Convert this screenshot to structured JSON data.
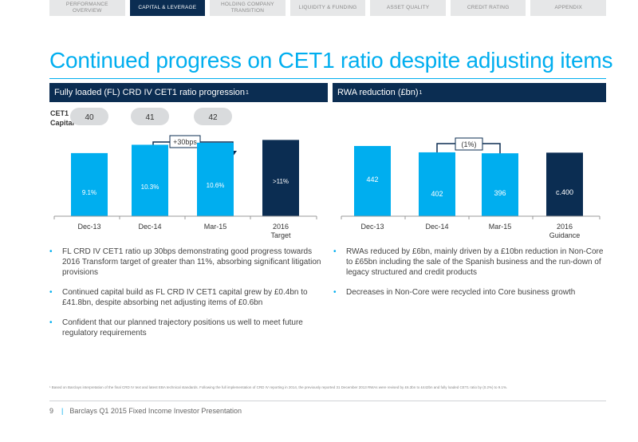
{
  "tabs": [
    {
      "label": "PERFORMANCE OVERVIEW"
    },
    {
      "label": "CAPITAL & LEVERAGE"
    },
    {
      "label": "HOLDING COMPANY TRANSITION"
    },
    {
      "label": "LIQUIDITY & FUNDING"
    },
    {
      "label": "ASSET QUALITY"
    },
    {
      "label": "CREDIT RATING"
    },
    {
      "label": "APPENDIX"
    }
  ],
  "title": "Continued progress on CET1 ratio despite adjusting items",
  "left_panel": {
    "heading": "Fully loaded (FL) CRD IV CET1 ratio progression",
    "heading_sup": "1",
    "capital_label_1": "CET1",
    "capital_label_2": "Capital",
    "capital_values": [
      "40",
      "41",
      "42"
    ],
    "callout": "+30bps",
    "bullets": [
      "FL CRD IV CET1 ratio up 30bps demonstrating good progress towards 2016 Transform target of greater than 11%, absorbing significant litigation provisions",
      "Continued capital build as FL CRD IV CET1 capital grew by £0.4bn to £41.8bn, despite absorbing net adjusting items of £0.6bn",
      "Confident that our planned trajectory positions us well to meet future regulatory requirements"
    ]
  },
  "right_panel": {
    "heading": "RWA reduction (£bn)",
    "heading_sup": "1",
    "callout": "(1%)",
    "bullets": [
      "RWAs reduced by £6bn, mainly driven by a £10bn reduction in Non-Core to £65bn including the sale of the Spanish business and the run-down of legacy structured and credit products",
      "Decreases in Non-Core were recycled into Core business growth"
    ]
  },
  "colors": {
    "navy": "#0b2d52",
    "cyan": "#00aeef"
  },
  "chart_data": [
    {
      "type": "bar",
      "categories": [
        "Dec-13",
        "Dec-14",
        "Mar-15",
        "2016 Target"
      ],
      "values": [
        9.1,
        10.3,
        10.6,
        11.0
      ],
      "labels": [
        "9.1%",
        "10.3%",
        "10.6%",
        ">11%"
      ],
      "ylim": [
        0,
        13
      ]
    },
    {
      "type": "bar",
      "categories": [
        "Dec-13",
        "Dec-14",
        "Mar-15",
        "2016 Guidance"
      ],
      "values": [
        442,
        402,
        396,
        400
      ],
      "labels": [
        "442",
        "402",
        "396",
        "c.400"
      ],
      "ylim": [
        0,
        472
      ]
    }
  ],
  "footnote": "¹ Based on Barclays interpretation of the final CRD IV text and latest EBA technical standards. Following the full implementation of CRD IV reporting in 2014, the previously reported 31 December 2013 RWAs were revised by £6.3bn to £442bn and fully loaded CET1 ratio by (0.2%) to 9.1%.",
  "footer": {
    "page": "9",
    "text": "Barclays Q1 2015 Fixed Income Investor Presentation"
  }
}
